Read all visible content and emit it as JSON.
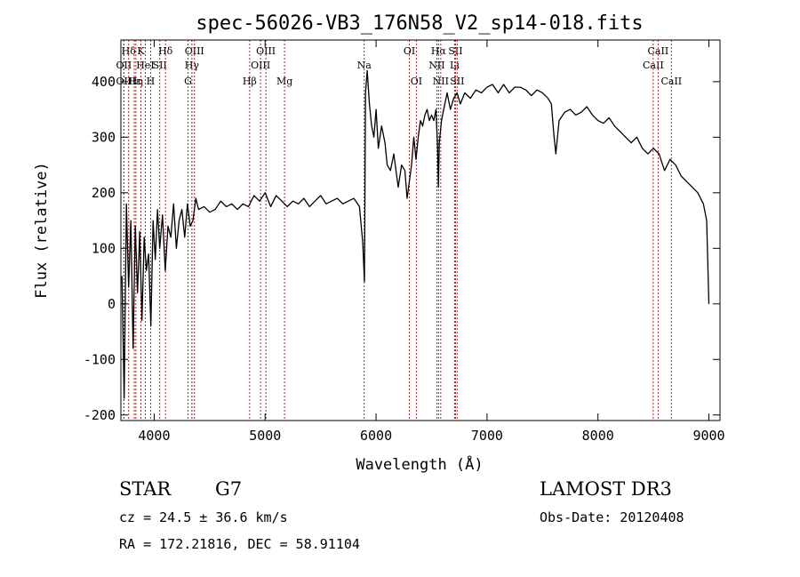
{
  "chart_data": {
    "type": "line",
    "title": "spec-56026-VB3_176N58_V2_sp14-018.fits",
    "xlabel": "Wavelength (Å)",
    "ylabel": "Flux (relative)",
    "xlim": [
      3700,
      9100
    ],
    "ylim": [
      -210,
      475
    ],
    "x_ticks": [
      4000,
      5000,
      6000,
      7000,
      8000,
      9000
    ],
    "y_ticks": [
      -200,
      -100,
      0,
      100,
      200,
      300,
      400
    ],
    "grid": false,
    "line_color": "#000000",
    "marker_color": "#b22222",
    "series": [
      {
        "x": [
          3710,
          3730,
          3750,
          3770,
          3790,
          3810,
          3830,
          3850,
          3870,
          3890,
          3910,
          3930,
          3950,
          3970,
          3990,
          4010,
          4030,
          4050,
          4075,
          4100,
          4125,
          4150,
          4175,
          4200,
          4225,
          4250,
          4275,
          4300,
          4325,
          4350,
          4375,
          4400,
          4450,
          4500,
          4550,
          4600,
          4650,
          4700,
          4750,
          4800,
          4850,
          4900,
          4950,
          5000,
          5050,
          5100,
          5150,
          5200,
          5250,
          5300,
          5350,
          5400,
          5450,
          5500,
          5550,
          5600,
          5650,
          5700,
          5750,
          5800,
          5850,
          5880,
          5895,
          5905,
          5920,
          5940,
          5960,
          5980,
          6000,
          6020,
          6050,
          6080,
          6100,
          6130,
          6160,
          6200,
          6230,
          6260,
          6280,
          6300,
          6320,
          6340,
          6360,
          6380,
          6400,
          6420,
          6440,
          6460,
          6480,
          6500,
          6520,
          6540,
          6555,
          6562,
          6570,
          6590,
          6610,
          6640,
          6670,
          6700,
          6730,
          6760,
          6800,
          6850,
          6900,
          6950,
          7000,
          7050,
          7100,
          7150,
          7200,
          7250,
          7300,
          7350,
          7400,
          7450,
          7500,
          7550,
          7580,
          7600,
          7620,
          7650,
          7700,
          7750,
          7800,
          7850,
          7900,
          7950,
          8000,
          8050,
          8100,
          8150,
          8200,
          8250,
          8300,
          8350,
          8400,
          8450,
          8500,
          8550,
          8600,
          8650,
          8700,
          8750,
          8800,
          8850,
          8900,
          8950,
          8980,
          9000
        ],
        "y": [
          50,
          -170,
          180,
          30,
          150,
          -80,
          140,
          20,
          130,
          -30,
          120,
          60,
          90,
          -40,
          150,
          80,
          170,
          100,
          160,
          60,
          140,
          120,
          180,
          100,
          150,
          170,
          120,
          180,
          140,
          150,
          190,
          170,
          175,
          165,
          170,
          185,
          175,
          180,
          170,
          180,
          175,
          195,
          185,
          200,
          175,
          195,
          185,
          175,
          185,
          180,
          190,
          175,
          185,
          195,
          180,
          185,
          190,
          180,
          185,
          190,
          175,
          110,
          40,
          380,
          420,
          360,
          320,
          300,
          350,
          280,
          320,
          290,
          250,
          240,
          270,
          210,
          250,
          240,
          190,
          220,
          250,
          300,
          260,
          300,
          330,
          320,
          340,
          350,
          330,
          340,
          330,
          350,
          280,
          210,
          290,
          330,
          350,
          380,
          350,
          370,
          380,
          360,
          380,
          370,
          385,
          380,
          390,
          395,
          380,
          395,
          380,
          390,
          390,
          385,
          375,
          385,
          380,
          370,
          360,
          310,
          270,
          330,
          345,
          350,
          340,
          345,
          355,
          340,
          330,
          325,
          335,
          320,
          310,
          300,
          290,
          300,
          280,
          270,
          280,
          270,
          240,
          260,
          250,
          230,
          220,
          210,
          200,
          180,
          150,
          0
        ]
      }
    ],
    "line_markers": [
      {
        "name": "Hδ",
        "wl": 3770,
        "row": 0
      },
      {
        "name": "OII",
        "wl": 3727,
        "row": 1
      },
      {
        "name": "OII",
        "wl": 3727,
        "row": 2
      },
      {
        "name": "Hε",
        "wl": 3820,
        "row": 2
      },
      {
        "name": "Hη",
        "wl": 3835,
        "row": 2
      },
      {
        "name": "K",
        "wl": 3880,
        "row": 0
      },
      {
        "name": "HeI",
        "wl": 3920,
        "row": 1
      },
      {
        "name": "H",
        "wl": 3968,
        "row": 2
      },
      {
        "name": "SII",
        "wl": 4050,
        "row": 1
      },
      {
        "name": "Hδ",
        "wl": 4102,
        "row": 0
      },
      {
        "name": "OIII",
        "wl": 4363,
        "row": 0
      },
      {
        "name": "Hγ",
        "wl": 4340,
        "row": 1
      },
      {
        "name": "G",
        "wl": 4305,
        "row": 2
      },
      {
        "name": "Hβ",
        "wl": 4861,
        "row": 2
      },
      {
        "name": "OIII",
        "wl": 4959,
        "row": 1
      },
      {
        "name": "OIII",
        "wl": 5007,
        "row": 0
      },
      {
        "name": "Mg",
        "wl": 5175,
        "row": 2
      },
      {
        "name": "Na",
        "wl": 5893,
        "row": 1
      },
      {
        "name": "OI",
        "wl": 6300,
        "row": 0
      },
      {
        "name": "OI",
        "wl": 6363,
        "row": 2
      },
      {
        "name": "Hα",
        "wl": 6563,
        "row": 0
      },
      {
        "name": "NII",
        "wl": 6548,
        "row": 1
      },
      {
        "name": "NII",
        "wl": 6583,
        "row": 2
      },
      {
        "name": "SII",
        "wl": 6716,
        "row": 0
      },
      {
        "name": "Li",
        "wl": 6708,
        "row": 1
      },
      {
        "name": "SII",
        "wl": 6731,
        "row": 2
      },
      {
        "name": "CaII",
        "wl": 8498,
        "row": 1
      },
      {
        "name": "CaII",
        "wl": 8542,
        "row": 0
      },
      {
        "name": "CaII",
        "wl": 8662,
        "row": 2
      }
    ]
  },
  "info": {
    "object_class": "STAR",
    "subclass": "G7",
    "survey": "LAMOST DR3",
    "redshift_line": "cz = 24.5 ± 36.6 km/s",
    "obs_date_line": "Obs-Date: 20120408",
    "coords_line": "RA = 172.21816, DEC =  58.91104"
  }
}
